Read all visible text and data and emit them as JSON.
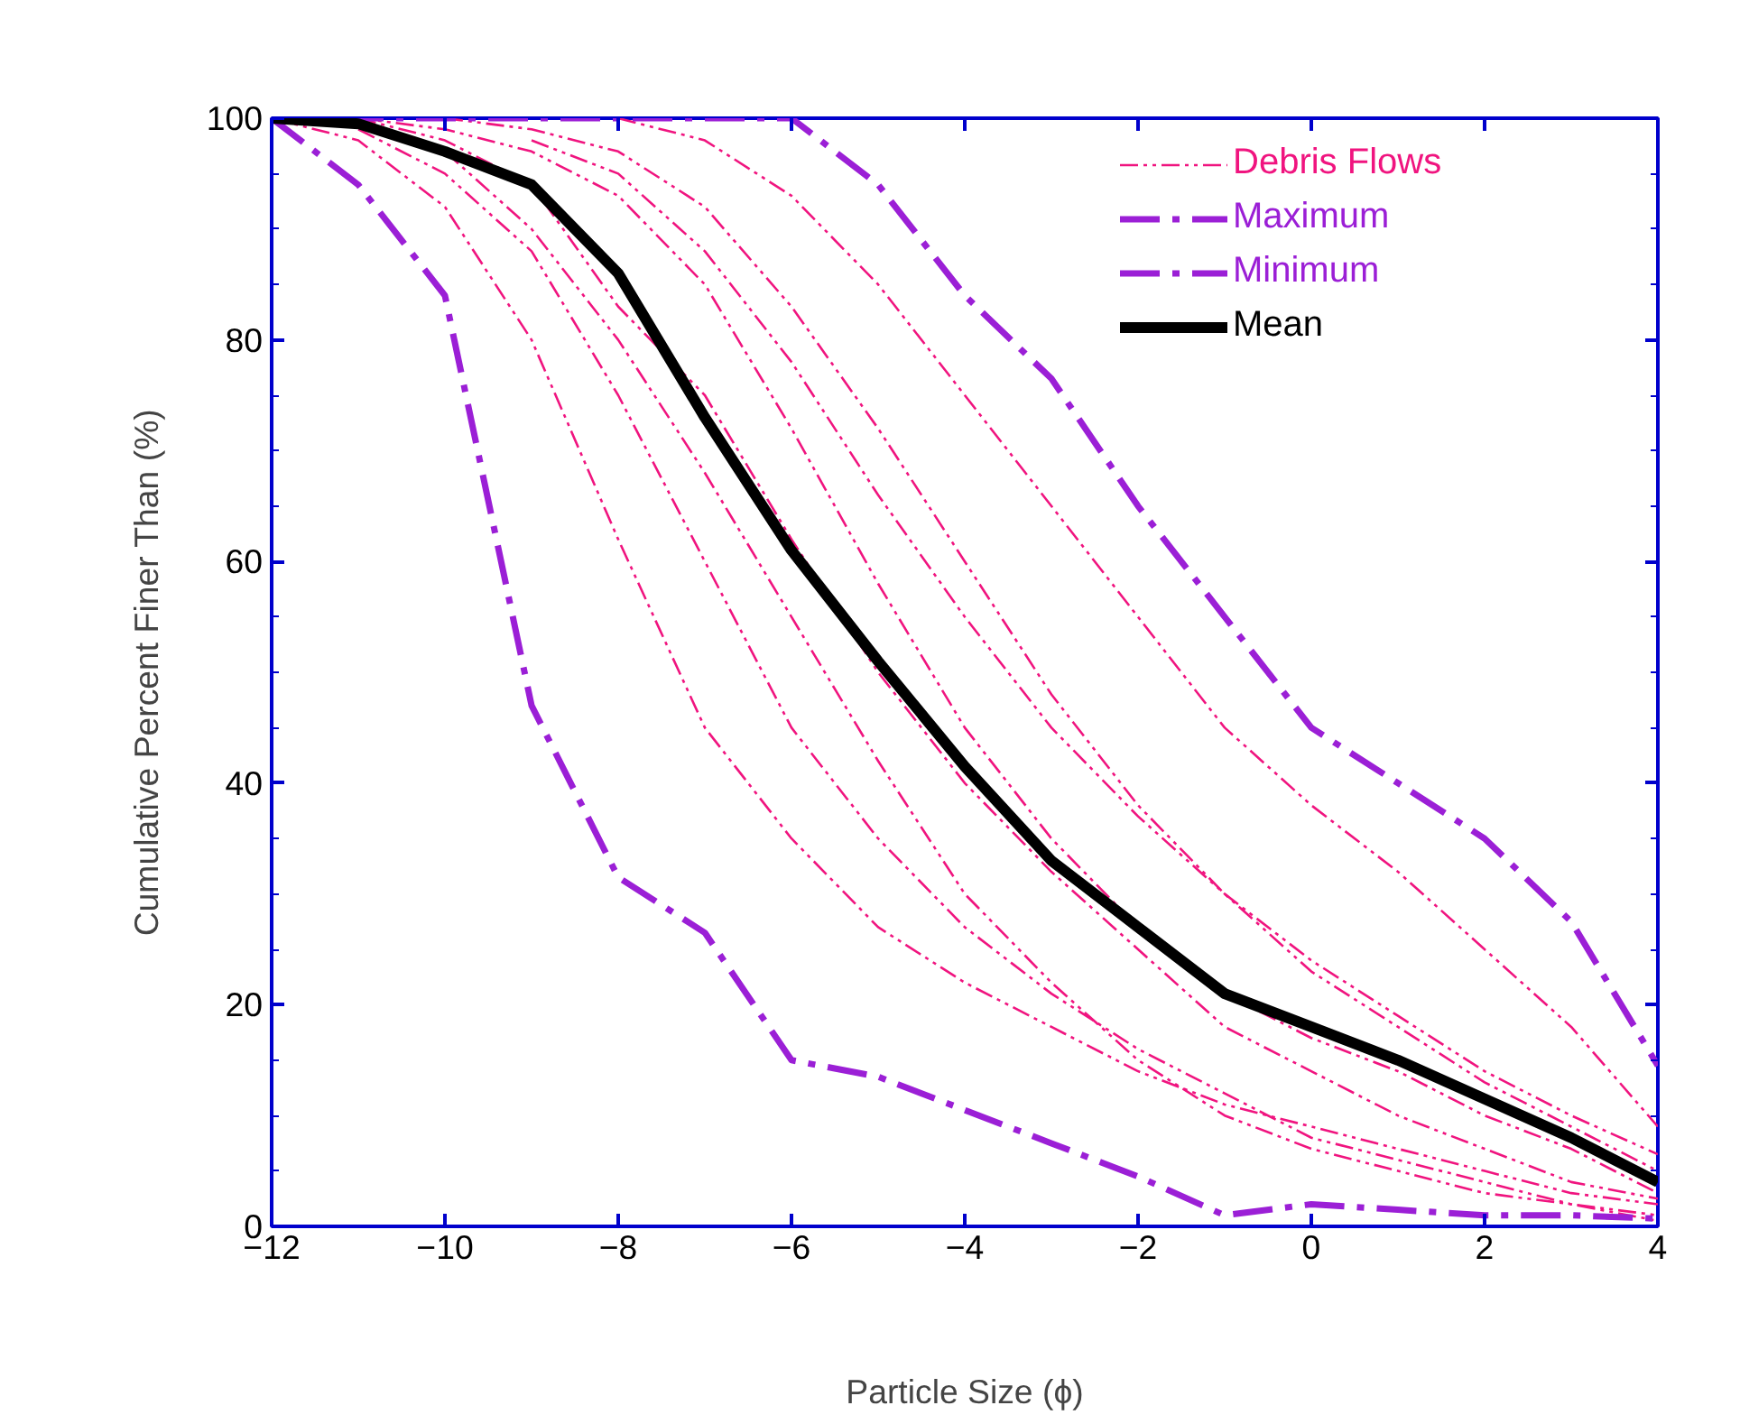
{
  "chart_data": {
    "type": "line",
    "xlabel": "Particle Size (ϕ)",
    "ylabel": "Cumulative Percent Finer Than (%)",
    "x": [
      -12,
      -11,
      -10,
      -9,
      -8,
      -7,
      -6,
      -5,
      -4,
      -3,
      -2,
      -1,
      0,
      1,
      2,
      3,
      4
    ],
    "xlim": [
      -12,
      4
    ],
    "xticks": [
      -12,
      -10,
      -8,
      -6,
      -4,
      -2,
      0,
      2,
      4
    ],
    "ylim": [
      0,
      100
    ],
    "yticks": [
      0,
      20,
      40,
      60,
      80,
      100
    ],
    "grid": false,
    "legend": "top right",
    "marker": "none",
    "series": [
      {
        "name": "Debris Flows",
        "color": "#f0147f",
        "line_style": "dotted",
        "values": [
          100,
          100,
          99,
          97,
          93,
          85,
          72,
          58,
          45,
          35,
          27,
          21,
          17,
          14,
          10,
          7,
          3
        ]
      },
      {
        "color": "#f0147f",
        "line_style": "dotted",
        "x": [
          -10,
          -9,
          -8,
          -7,
          -6,
          -5,
          -4,
          -3,
          -2,
          -1,
          0,
          1,
          2,
          3,
          4
        ],
        "values": [
          100,
          99,
          97,
          92,
          83,
          72,
          60,
          48,
          38,
          30,
          23,
          18,
          13,
          9,
          5
        ]
      },
      {
        "color": "#f0147f",
        "line_style": "dotted",
        "values": [
          100,
          98,
          92,
          80,
          62,
          45,
          35,
          27,
          22,
          18,
          14,
          11,
          9,
          7,
          5,
          3,
          2
        ]
      },
      {
        "color": "#f0147f",
        "line_style": "dotted",
        "x": [
          -8,
          -7,
          -6,
          -5,
          -4,
          -3,
          -2,
          -1,
          0,
          1,
          2,
          3,
          4
        ],
        "values": [
          100,
          98,
          93,
          85,
          75,
          65,
          55,
          45,
          38,
          32,
          25,
          18,
          9
        ]
      },
      {
        "color": "#f0147f",
        "line_style": "dotted",
        "x": [
          -11,
          -10,
          -9,
          -8,
          -7,
          -6,
          -5,
          -4,
          -3,
          -2,
          -1,
          0,
          1,
          2,
          3,
          4
        ],
        "values": [
          99,
          95,
          88,
          75,
          60,
          45,
          35,
          27,
          21,
          16,
          12,
          8,
          6,
          4,
          2,
          1
        ]
      },
      {
        "color": "#f0147f",
        "line_style": "dotted",
        "x": [
          -11,
          -10,
          -9,
          -8,
          -7,
          -6,
          -5,
          -4,
          -3,
          -2,
          -1,
          0,
          1,
          2,
          3,
          4
        ],
        "values": [
          100,
          98,
          94,
          83,
          75,
          62,
          50,
          40,
          32,
          25,
          18,
          14,
          10,
          7,
          4,
          2.5
        ]
      },
      {
        "color": "#f0147f",
        "line_style": "dotted",
        "x": [
          -10,
          -9,
          -8,
          -7,
          -6,
          -5,
          -4,
          -3,
          -2,
          -1,
          0,
          1,
          2,
          3,
          4
        ],
        "values": [
          97,
          90,
          80,
          68,
          55,
          42,
          30,
          22,
          15,
          10,
          7,
          5,
          3,
          2,
          0.5
        ]
      },
      {
        "color": "#f0147f",
        "line_style": "dotted",
        "x": [
          -9,
          -8,
          -7,
          -6,
          -5,
          -4,
          -3,
          -2,
          -1,
          0,
          1,
          2,
          3,
          4
        ],
        "values": [
          98,
          95,
          88,
          78,
          66,
          55,
          45,
          37,
          30,
          24,
          19,
          14,
          10,
          6.5
        ]
      },
      {
        "name": "Maximum",
        "color": "#9b1fd6",
        "line_style": "dashed",
        "values": [
          100,
          100,
          100,
          100,
          100,
          100,
          100,
          94,
          84,
          76.5,
          65,
          55,
          45,
          40,
          35,
          27.5,
          14.5
        ]
      },
      {
        "name": "Minimum",
        "color": "#9b1fd6",
        "line_style": "dashed",
        "values": [
          100,
          94,
          84,
          47,
          31.5,
          26.5,
          15,
          13.5,
          10.5,
          7.5,
          4.5,
          1,
          2,
          1.5,
          1,
          1,
          0.7
        ]
      },
      {
        "name": "Mean",
        "color": "#000000",
        "line_style": "solid",
        "values": [
          100,
          99.5,
          97,
          94,
          86,
          73,
          61,
          51,
          41.5,
          33,
          27,
          21,
          18,
          15,
          11.5,
          8,
          4
        ]
      }
    ]
  }
}
